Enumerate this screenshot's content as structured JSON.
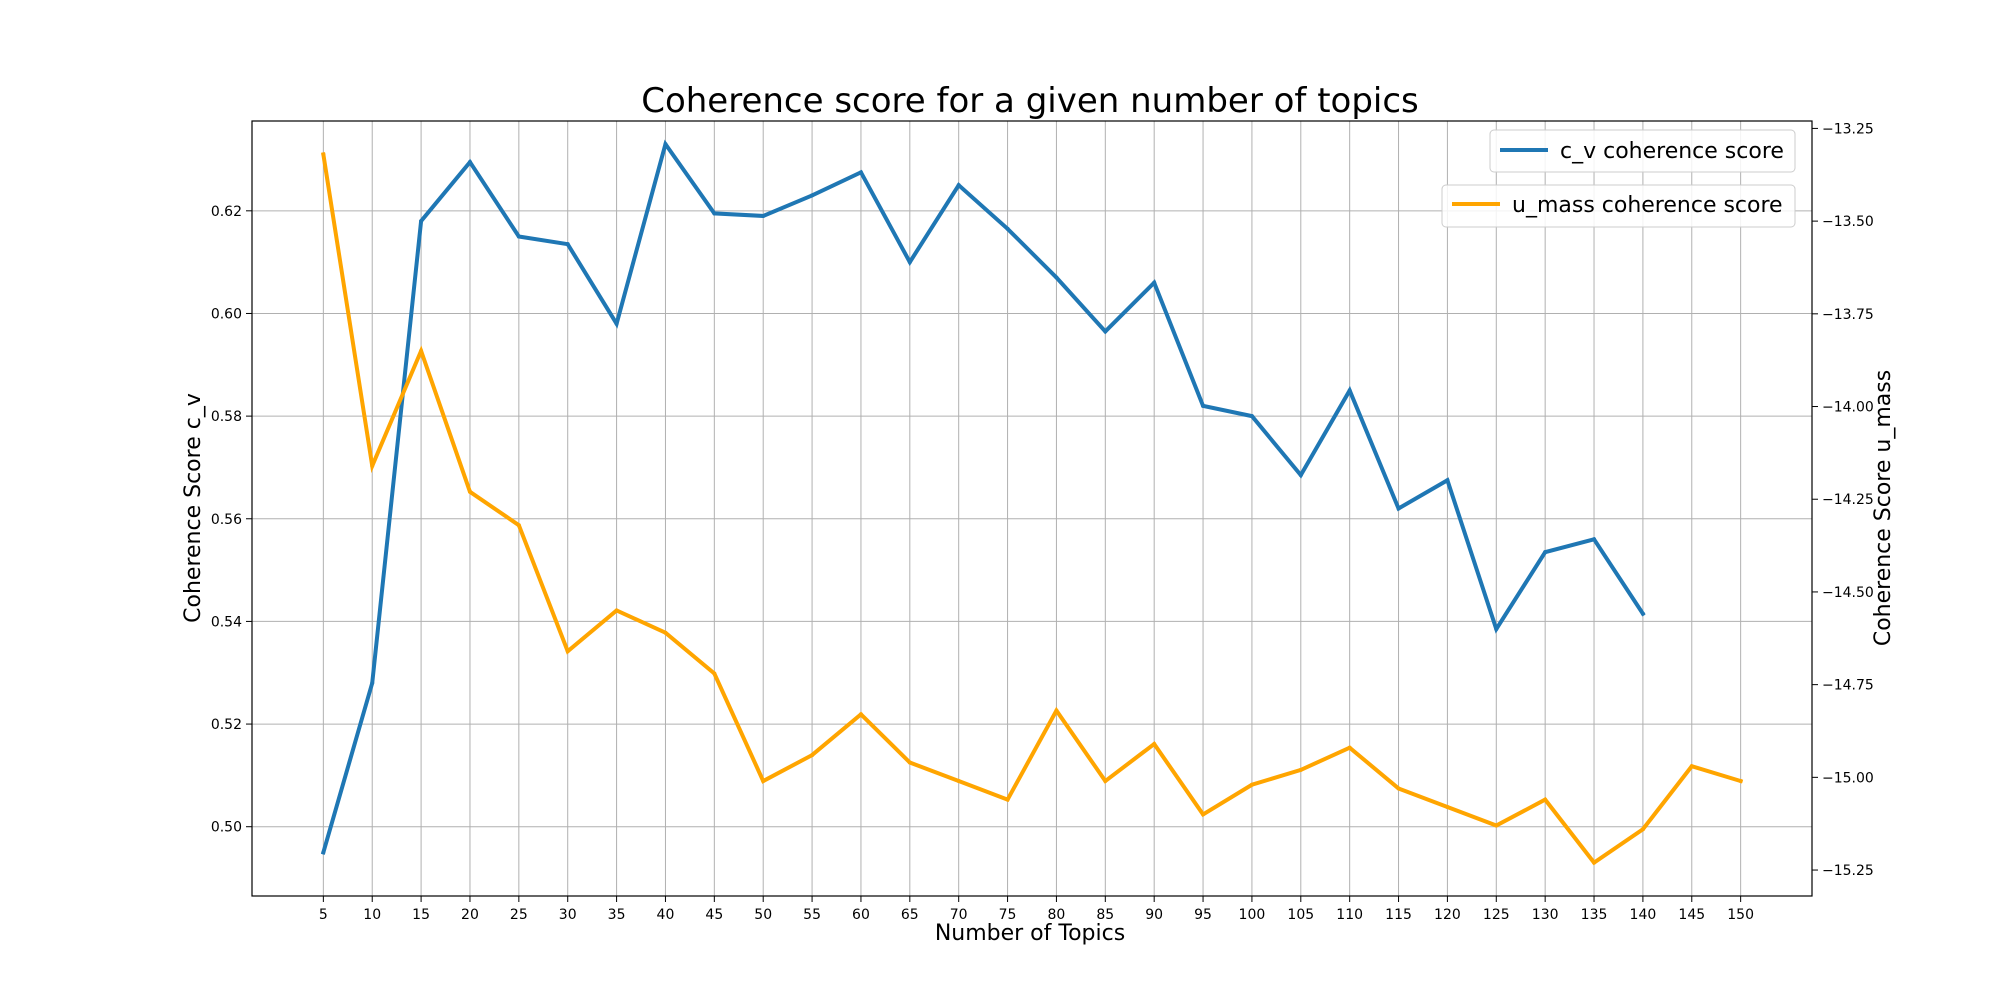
{
  "chart_data": {
    "type": "line",
    "title": "Coherence score for a given number of topics",
    "xlabel": "Number of Topics",
    "ylabel_left": "Coherence Score c_v",
    "ylabel_right": "Coherence Score u_mass",
    "x_ticks": [
      5,
      10,
      15,
      20,
      25,
      30,
      35,
      40,
      45,
      50,
      55,
      60,
      65,
      70,
      75,
      80,
      85,
      90,
      95,
      100,
      105,
      110,
      115,
      120,
      125,
      130,
      135,
      140,
      145,
      150
    ],
    "xlim": [
      -2.3,
      157.3
    ],
    "ylim_left": [
      0.4865,
      0.6375
    ],
    "ylim_right": [
      -15.32,
      -13.23
    ],
    "left_ticks": [
      0.5,
      0.52,
      0.54,
      0.56,
      0.58,
      0.6,
      0.62
    ],
    "left_tick_labels": [
      "0.50",
      "0.52",
      "0.54",
      "0.56",
      "0.58",
      "0.60",
      "0.62"
    ],
    "right_ticks": [
      -15.25,
      -15.0,
      -14.75,
      -14.5,
      -14.25,
      -14.0,
      -13.75,
      -13.5,
      -13.25
    ],
    "right_tick_labels": [
      "−15.25",
      "−15.00",
      "−14.75",
      "−14.50",
      "−14.25",
      "−14.00",
      "−13.75",
      "−13.50",
      "−13.25"
    ],
    "grid": true,
    "legend_placement": "top-right",
    "series": [
      {
        "name": "c_v coherence score",
        "axis": "left",
        "color": "#1f77b4",
        "x": [
          5,
          10,
          15,
          20,
          25,
          30,
          35,
          40,
          45,
          50,
          55,
          60,
          65,
          70,
          75,
          80,
          85,
          90,
          95,
          100,
          105,
          110,
          115,
          120,
          125,
          130,
          135,
          140
        ],
        "values": [
          0.495,
          0.528,
          0.618,
          0.6295,
          0.615,
          0.6135,
          0.598,
          0.633,
          0.6195,
          0.619,
          0.623,
          0.6275,
          0.61,
          0.625,
          0.6165,
          0.607,
          0.5965,
          0.606,
          0.582,
          0.58,
          0.5685,
          0.585,
          0.562,
          0.5675,
          0.5385,
          0.5535,
          0.556,
          0.5415
        ]
      },
      {
        "name": "u_mass coherence score",
        "axis": "right",
        "color": "#ffa500",
        "x": [
          5,
          10,
          15,
          20,
          25,
          30,
          35,
          40,
          45,
          50,
          55,
          60,
          65,
          70,
          75,
          80,
          85,
          90,
          95,
          100,
          105,
          110,
          115,
          120,
          125,
          130,
          135,
          140,
          145,
          150
        ],
        "values": [
          -13.32,
          -14.16,
          -13.85,
          -14.23,
          -14.32,
          -14.66,
          -14.55,
          -14.61,
          -14.72,
          -15.01,
          -14.94,
          -14.83,
          -14.96,
          -15.01,
          -15.06,
          -14.82,
          -15.01,
          -14.91,
          -15.1,
          -15.02,
          -14.98,
          -14.92,
          -15.03,
          -15.08,
          -15.13,
          -15.06,
          -15.23,
          -15.14,
          -14.97,
          -15.01
        ]
      }
    ]
  }
}
